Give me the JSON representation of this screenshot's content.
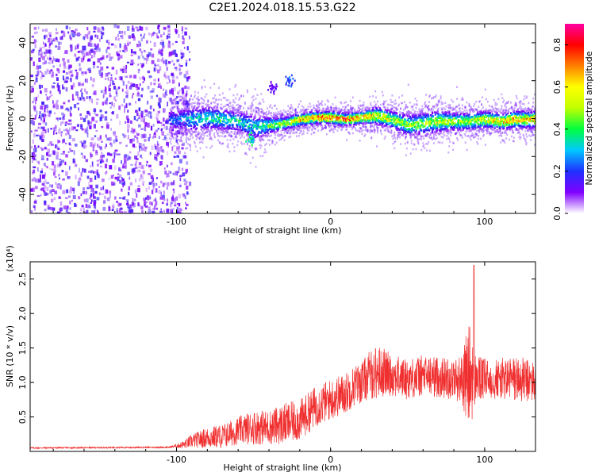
{
  "title": "C2E1.2024.018.15.53.G22",
  "chart_data": [
    {
      "type": "heatmap",
      "xlabel": "Height of straight line (km)",
      "ylabel": "Frequency (Hz)",
      "xlim": [
        -195,
        133
      ],
      "ylim": [
        -50,
        50
      ],
      "xticks": [
        -100,
        0,
        100
      ],
      "xtick_labels": [
        "-100",
        "0",
        "100"
      ],
      "yticks": [
        -40,
        -20,
        0,
        20,
        40
      ],
      "ytick_labels": [
        "-40",
        "-20",
        "0",
        "20",
        "40"
      ],
      "colorbar": {
        "label": "Normalized spectral amplitude",
        "range": [
          0.0,
          0.9
        ],
        "ticks": [
          0.0,
          0.2,
          0.4,
          0.6,
          0.8
        ],
        "tick_labels": [
          "0.0",
          "0.2",
          "0.4",
          "0.6",
          "0.8"
        ],
        "colors": [
          "#ffffff",
          "#8000ff",
          "#2030ff",
          "#00c8ff",
          "#00ff40",
          "#c0ff00",
          "#ffff00",
          "#ff8000",
          "#ff0000",
          "#ff00a0"
        ]
      },
      "noise_region": {
        "x_range": [
          -195,
          -100
        ],
        "y_range": [
          -50,
          50
        ],
        "amplitude": 0.15
      },
      "signal_ridge": {
        "x": [
          -105,
          -90,
          -80,
          -70,
          -60,
          -50,
          -40,
          -30,
          -20,
          -10,
          0,
          10,
          20,
          30,
          40,
          50,
          60,
          70,
          80,
          90,
          100,
          110,
          120,
          133
        ],
        "center_freq": [
          0,
          0,
          1,
          0,
          -1,
          -4,
          -3,
          -2,
          0,
          1,
          1,
          0,
          1,
          2,
          0,
          -3,
          -2,
          -1,
          -1,
          -1,
          0,
          -1,
          0,
          0
        ],
        "half_width": [
          5,
          6,
          6,
          5,
          5,
          6,
          4,
          3,
          3,
          3,
          3,
          3,
          3,
          4,
          4,
          5,
          5,
          5,
          4,
          4,
          4,
          4,
          4,
          4
        ],
        "peak_amplitude": [
          0.25,
          0.35,
          0.4,
          0.45,
          0.4,
          0.35,
          0.5,
          0.6,
          0.75,
          0.8,
          0.85,
          0.8,
          0.8,
          0.7,
          0.6,
          0.55,
          0.55,
          0.6,
          0.6,
          0.6,
          0.65,
          0.7,
          0.75,
          0.7
        ]
      },
      "isolated_features": [
        {
          "x": -52,
          "y": -11,
          "amplitude": 0.4
        },
        {
          "x": -27,
          "y": 20,
          "amplitude": 0.25
        },
        {
          "x": -38,
          "y": 17,
          "amplitude": 0.15
        }
      ]
    },
    {
      "type": "line",
      "xlabel": "Height of straight line (km)",
      "ylabel": "SNR (10 * v/v)",
      "y_multiplier": "(x10⁴)",
      "xlim": [
        -195,
        133
      ],
      "ylim": [
        0,
        2.75
      ],
      "xticks": [
        -100,
        0,
        100
      ],
      "xtick_labels": [
        "-100",
        "0",
        "100"
      ],
      "yticks": [
        0.5,
        1.0,
        1.5,
        2.0,
        2.5
      ],
      "ytick_labels": [
        "0.5",
        "1.0",
        "1.5",
        "2.0",
        "2.5"
      ],
      "color": "#f03030",
      "envelope": {
        "x": [
          -195,
          -105,
          -100,
          -95,
          -90,
          -80,
          -70,
          -60,
          -50,
          -40,
          -30,
          -20,
          -15,
          -10,
          0,
          10,
          15,
          20,
          25,
          30,
          35,
          40,
          50,
          60,
          70,
          80,
          85,
          90,
          95,
          100,
          110,
          120,
          133
        ],
        "mean": [
          0.05,
          0.06,
          0.08,
          0.1,
          0.15,
          0.2,
          0.22,
          0.3,
          0.35,
          0.35,
          0.4,
          0.45,
          0.55,
          0.65,
          0.75,
          0.85,
          0.95,
          1.0,
          1.1,
          1.15,
          1.15,
          1.1,
          1.05,
          1.1,
          1.08,
          1.05,
          1.05,
          1.1,
          1.05,
          1.05,
          1.05,
          1.05,
          1.0
        ],
        "amplitude": [
          0.01,
          0.01,
          0.03,
          0.06,
          0.1,
          0.15,
          0.18,
          0.2,
          0.25,
          0.25,
          0.3,
          0.3,
          0.3,
          0.3,
          0.3,
          0.3,
          0.3,
          0.3,
          0.35,
          0.4,
          0.35,
          0.3,
          0.3,
          0.3,
          0.3,
          0.3,
          0.35,
          0.8,
          0.35,
          0.3,
          0.3,
          0.35,
          0.3
        ]
      },
      "peak": {
        "x": 93,
        "y": 2.7
      }
    }
  ]
}
